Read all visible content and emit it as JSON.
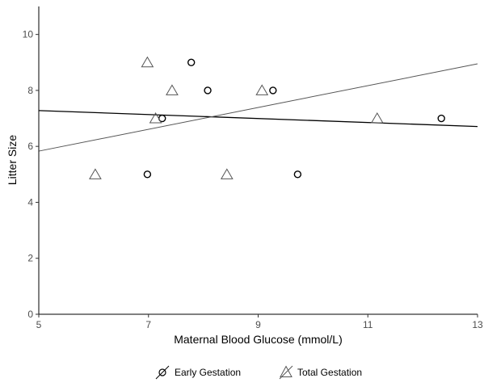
{
  "chart_data": {
    "type": "scatter",
    "xlabel": "Maternal Blood Glucose (mmol/L)",
    "ylabel": "Litter Size",
    "xlim": [
      5,
      13
    ],
    "ylim": [
      0,
      11
    ],
    "xticks": [
      5,
      7,
      9,
      11,
      13
    ],
    "yticks": [
      0,
      2,
      4,
      6,
      8,
      10
    ],
    "grid": false,
    "legend": "bottom",
    "series": [
      {
        "name": "Early Gestation",
        "marker": "circle",
        "color": "#000000",
        "points": [
          {
            "x": 6.98,
            "y": 5
          },
          {
            "x": 7.25,
            "y": 7
          },
          {
            "x": 7.78,
            "y": 9
          },
          {
            "x": 8.08,
            "y": 8
          },
          {
            "x": 9.27,
            "y": 8
          },
          {
            "x": 9.72,
            "y": 5
          },
          {
            "x": 12.34,
            "y": 7
          }
        ],
        "fit": {
          "x1": 5,
          "y1": 7.28,
          "x2": 13,
          "y2": 6.71
        }
      },
      {
        "name": "Total Gestation",
        "marker": "triangle",
        "color": "#555555",
        "points": [
          {
            "x": 6.03,
            "y": 5
          },
          {
            "x": 6.98,
            "y": 9
          },
          {
            "x": 7.13,
            "y": 7
          },
          {
            "x": 7.43,
            "y": 8
          },
          {
            "x": 8.43,
            "y": 5
          },
          {
            "x": 9.07,
            "y": 8
          },
          {
            "x": 11.17,
            "y": 7
          }
        ],
        "fit": {
          "x1": 5,
          "y1": 5.83,
          "x2": 13,
          "y2": 8.95
        }
      }
    ]
  }
}
